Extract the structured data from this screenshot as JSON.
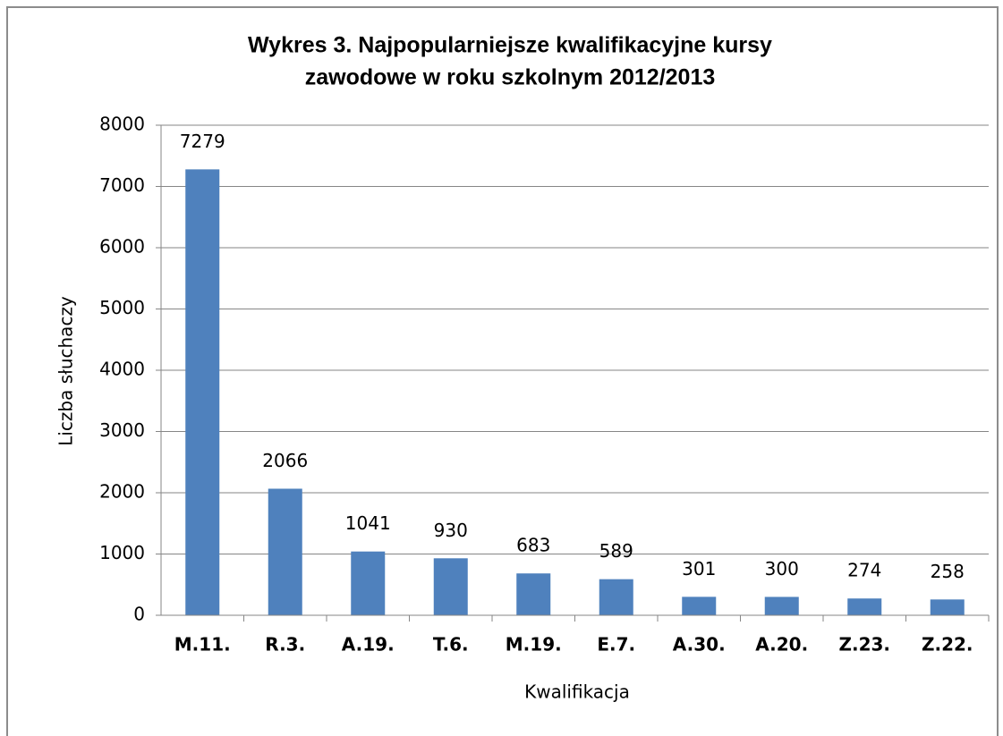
{
  "chart_data": {
    "type": "bar",
    "title": [
      "Wykres 3. Najpopularniejsze kwalifikacyjne kursy",
      "zawodowe w roku szkolnym 2012/2013"
    ],
    "x_label": "Kwalifikacja",
    "y_label": "Liczba słuchaczy",
    "categories": [
      "M.11.",
      "R.3.",
      "A.19.",
      "T.6.",
      "M.19.",
      "E.7.",
      "A.30.",
      "A.20.",
      "Z.23.",
      "Z.22."
    ],
    "values": [
      7279,
      2066,
      1041,
      930,
      683,
      589,
      301,
      300,
      274,
      258
    ],
    "color": "#4f81bd",
    "ylim": [
      0,
      8000
    ],
    "yticks": [
      0,
      1000,
      2000,
      3000,
      4000,
      5000,
      6000,
      7000,
      8000
    ],
    "grid": true,
    "data_labels": true
  }
}
